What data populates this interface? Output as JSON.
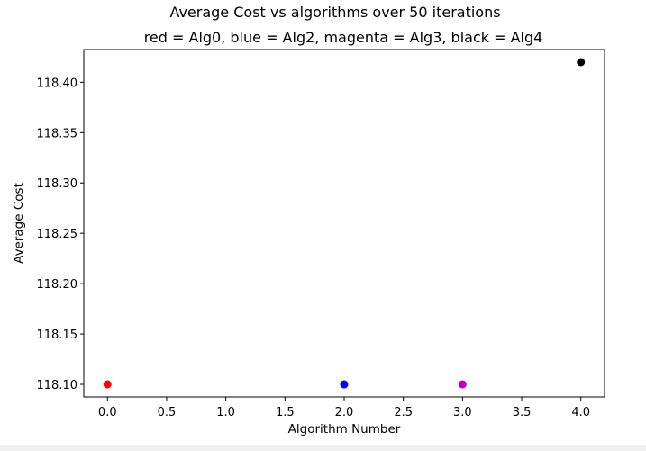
{
  "chart_data": {
    "type": "scatter",
    "title": "Average Cost vs algorithms over 50 iterations",
    "subtitle": "red = Alg0, blue = Alg2, magenta = Alg3, black = Alg4",
    "xlabel": "Algorithm Number",
    "ylabel": "Average Cost",
    "xlim": [
      -0.2,
      4.2
    ],
    "ylim": [
      118.0875,
      118.4325
    ],
    "xticks": [
      0.0,
      0.5,
      1.0,
      1.5,
      2.0,
      2.5,
      3.0,
      3.5,
      4.0
    ],
    "xtick_labels": [
      "0.0",
      "0.5",
      "1.0",
      "1.5",
      "2.0",
      "2.5",
      "3.0",
      "3.5",
      "4.0"
    ],
    "yticks": [
      118.1,
      118.15,
      118.2,
      118.25,
      118.3,
      118.35,
      118.4
    ],
    "ytick_labels": [
      "118.10",
      "118.15",
      "118.20",
      "118.25",
      "118.30",
      "118.35",
      "118.40"
    ],
    "grid": false,
    "points": [
      {
        "x": 0,
        "y": 118.1,
        "color": "#ff0000"
      },
      {
        "x": 2,
        "y": 118.1,
        "color": "#0000ff"
      },
      {
        "x": 3,
        "y": 118.1,
        "color": "#bf00bf"
      },
      {
        "x": 4,
        "y": 118.42,
        "color": "#000000"
      }
    ]
  }
}
